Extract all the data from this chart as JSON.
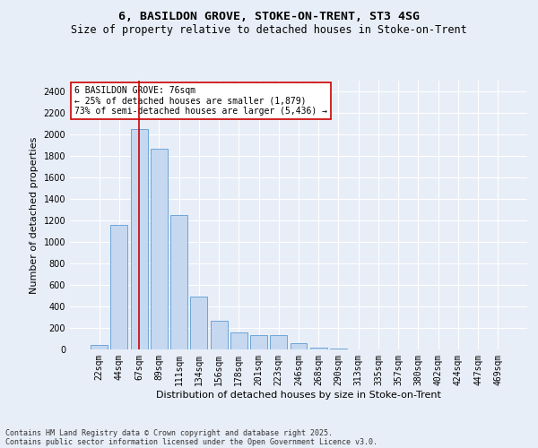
{
  "title1": "6, BASILDON GROVE, STOKE-ON-TRENT, ST3 4SG",
  "title2": "Size of property relative to detached houses in Stoke-on-Trent",
  "xlabel": "Distribution of detached houses by size in Stoke-on-Trent",
  "ylabel": "Number of detached properties",
  "categories": [
    "22sqm",
    "44sqm",
    "67sqm",
    "89sqm",
    "111sqm",
    "134sqm",
    "156sqm",
    "178sqm",
    "201sqm",
    "223sqm",
    "246sqm",
    "268sqm",
    "290sqm",
    "313sqm",
    "335sqm",
    "357sqm",
    "380sqm",
    "402sqm",
    "424sqm",
    "447sqm",
    "469sqm"
  ],
  "values": [
    40,
    1160,
    2050,
    1870,
    1250,
    490,
    270,
    160,
    130,
    130,
    55,
    18,
    10,
    4,
    3,
    2,
    1,
    1,
    1,
    1,
    1
  ],
  "bar_color": "#c5d8f0",
  "bar_edge_color": "#5b9bd5",
  "background_color": "#e8eef7",
  "grid_color": "#ffffff",
  "vline_x_index": 2,
  "vline_color": "#cc0000",
  "annotation_text": "6 BASILDON GROVE: 76sqm\n← 25% of detached houses are smaller (1,879)\n73% of semi-detached houses are larger (5,436) →",
  "annotation_box_color": "#ffffff",
  "annotation_box_edge": "#cc0000",
  "ylim": [
    0,
    2500
  ],
  "yticks": [
    0,
    200,
    400,
    600,
    800,
    1000,
    1200,
    1400,
    1600,
    1800,
    2000,
    2200,
    2400
  ],
  "footer1": "Contains HM Land Registry data © Crown copyright and database right 2025.",
  "footer2": "Contains public sector information licensed under the Open Government Licence v3.0.",
  "title_fontsize": 9.5,
  "subtitle_fontsize": 8.5,
  "axis_label_fontsize": 8,
  "tick_fontsize": 7,
  "annotation_fontsize": 7,
  "footer_fontsize": 6
}
